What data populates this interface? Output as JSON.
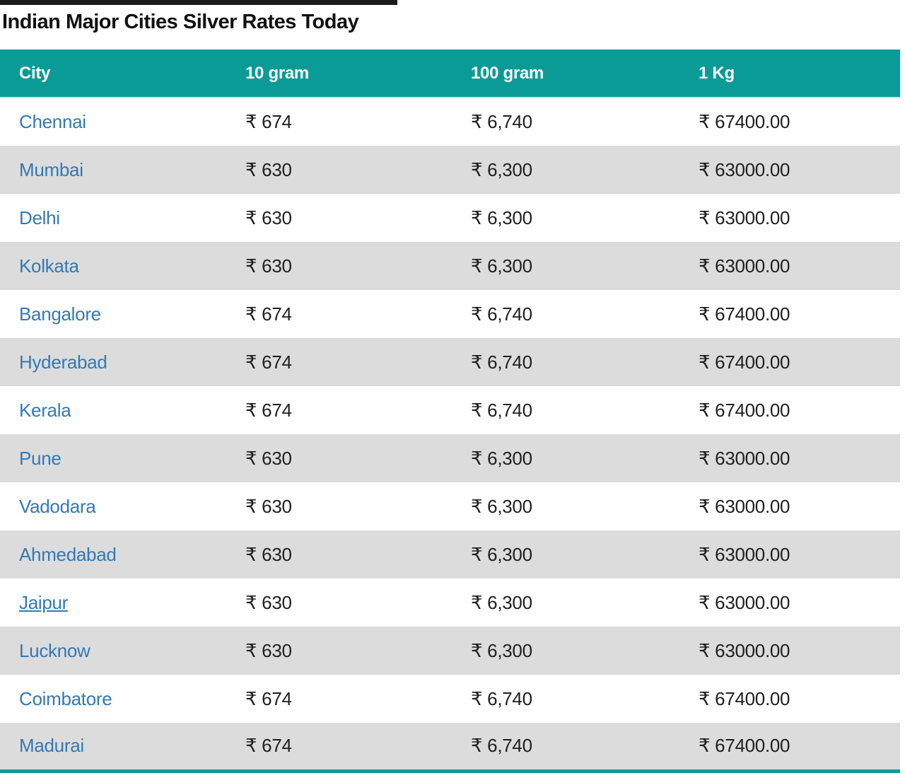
{
  "page_title": "Indian Major Cities Silver Rates Today",
  "colors": {
    "header_bg": "#0b9b97",
    "header_text": "#ffffff",
    "row_bg": "#ffffff",
    "row_alt_bg": "#dcdcdc",
    "city_link": "#3279b5",
    "value_text": "#1f1f1f",
    "top_strip": "#1b1b1b",
    "table_bottom_border": "#0b9b97"
  },
  "table": {
    "columns": [
      {
        "key": "city",
        "label": "City"
      },
      {
        "key": "g10",
        "label": "10 gram"
      },
      {
        "key": "g100",
        "label": "100 gram"
      },
      {
        "key": "kg1",
        "label": "1 Kg"
      }
    ],
    "rows": [
      {
        "city": "Chennai",
        "g10": "₹ 674",
        "g100": "₹ 6,740",
        "kg1": "₹ 67400.00",
        "underlined": false
      },
      {
        "city": "Mumbai",
        "g10": "₹ 630",
        "g100": "₹ 6,300",
        "kg1": "₹ 63000.00",
        "underlined": false
      },
      {
        "city": "Delhi",
        "g10": "₹ 630",
        "g100": "₹ 6,300",
        "kg1": "₹ 63000.00",
        "underlined": false
      },
      {
        "city": "Kolkata",
        "g10": "₹ 630",
        "g100": "₹ 6,300",
        "kg1": "₹ 63000.00",
        "underlined": false
      },
      {
        "city": "Bangalore",
        "g10": "₹ 674",
        "g100": "₹ 6,740",
        "kg1": "₹ 67400.00",
        "underlined": false
      },
      {
        "city": "Hyderabad",
        "g10": "₹ 674",
        "g100": "₹ 6,740",
        "kg1": "₹ 67400.00",
        "underlined": false
      },
      {
        "city": "Kerala",
        "g10": "₹ 674",
        "g100": "₹ 6,740",
        "kg1": "₹ 67400.00",
        "underlined": false
      },
      {
        "city": "Pune",
        "g10": "₹ 630",
        "g100": "₹ 6,300",
        "kg1": "₹ 63000.00",
        "underlined": false
      },
      {
        "city": "Vadodara",
        "g10": "₹ 630",
        "g100": "₹ 6,300",
        "kg1": "₹ 63000.00",
        "underlined": false
      },
      {
        "city": "Ahmedabad",
        "g10": "₹ 630",
        "g100": "₹ 6,300",
        "kg1": "₹ 63000.00",
        "underlined": false
      },
      {
        "city": "Jaipur",
        "g10": "₹ 630",
        "g100": "₹ 6,300",
        "kg1": "₹ 63000.00",
        "underlined": true
      },
      {
        "city": "Lucknow",
        "g10": "₹ 630",
        "g100": "₹ 6,300",
        "kg1": "₹ 63000.00",
        "underlined": false
      },
      {
        "city": "Coimbatore",
        "g10": "₹ 674",
        "g100": "₹ 6,740",
        "kg1": "₹ 67400.00",
        "underlined": false
      },
      {
        "city": "Madurai",
        "g10": "₹ 674",
        "g100": "₹ 6,740",
        "kg1": "₹ 67400.00",
        "underlined": false
      }
    ]
  },
  "chart_data": {
    "type": "table",
    "title": "Indian Major Cities Silver Rates Today",
    "columns": [
      "City",
      "10 gram",
      "100 gram",
      "1 Kg"
    ],
    "cities": [
      "Chennai",
      "Mumbai",
      "Delhi",
      "Kolkata",
      "Bangalore",
      "Hyderabad",
      "Kerala",
      "Pune",
      "Vadodara",
      "Ahmedabad",
      "Jaipur",
      "Lucknow",
      "Coimbatore",
      "Madurai"
    ],
    "series": [
      {
        "name": "10 gram (₹)",
        "values": [
          674,
          630,
          630,
          630,
          674,
          674,
          674,
          630,
          630,
          630,
          630,
          630,
          674,
          674
        ]
      },
      {
        "name": "100 gram (₹)",
        "values": [
          6740,
          6300,
          6300,
          6300,
          6740,
          6740,
          6740,
          6300,
          6300,
          6300,
          6300,
          6300,
          6740,
          6740
        ]
      },
      {
        "name": "1 Kg (₹)",
        "values": [
          67400.0,
          63000.0,
          63000.0,
          63000.0,
          67400.0,
          67400.0,
          67400.0,
          63000.0,
          63000.0,
          63000.0,
          63000.0,
          63000.0,
          67400.0,
          67400.0
        ]
      }
    ]
  }
}
